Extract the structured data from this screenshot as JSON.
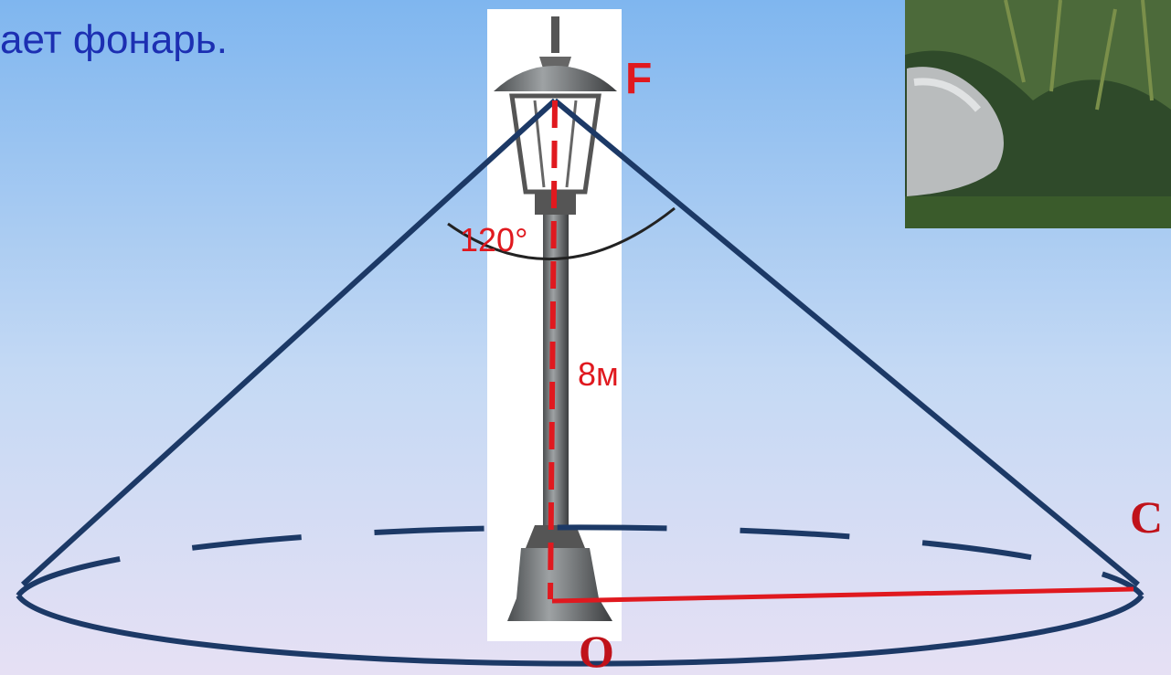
{
  "caption": "ает фонарь.",
  "labels": {
    "apex": "F",
    "angle": "120°",
    "height": "8м",
    "edge": "C",
    "center": "O"
  }
}
